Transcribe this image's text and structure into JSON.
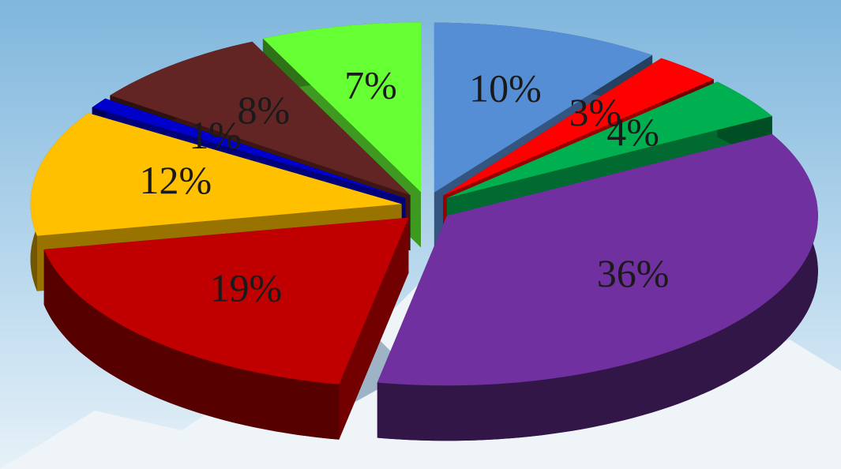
{
  "chart_data": {
    "type": "pie3d",
    "values": [
      10,
      3,
      4,
      36,
      19,
      12,
      1,
      8,
      7
    ],
    "value_labels": [
      "10%",
      "3%",
      "4%",
      "36%",
      "19%",
      "12%",
      "1%",
      "8%",
      "7%"
    ],
    "colors": [
      "#558ed5",
      "#ff0000",
      "#00b050",
      "#7030a0",
      "#c00000",
      "#ffc000",
      "#0000cc",
      "#632523",
      "#66ff33"
    ]
  }
}
